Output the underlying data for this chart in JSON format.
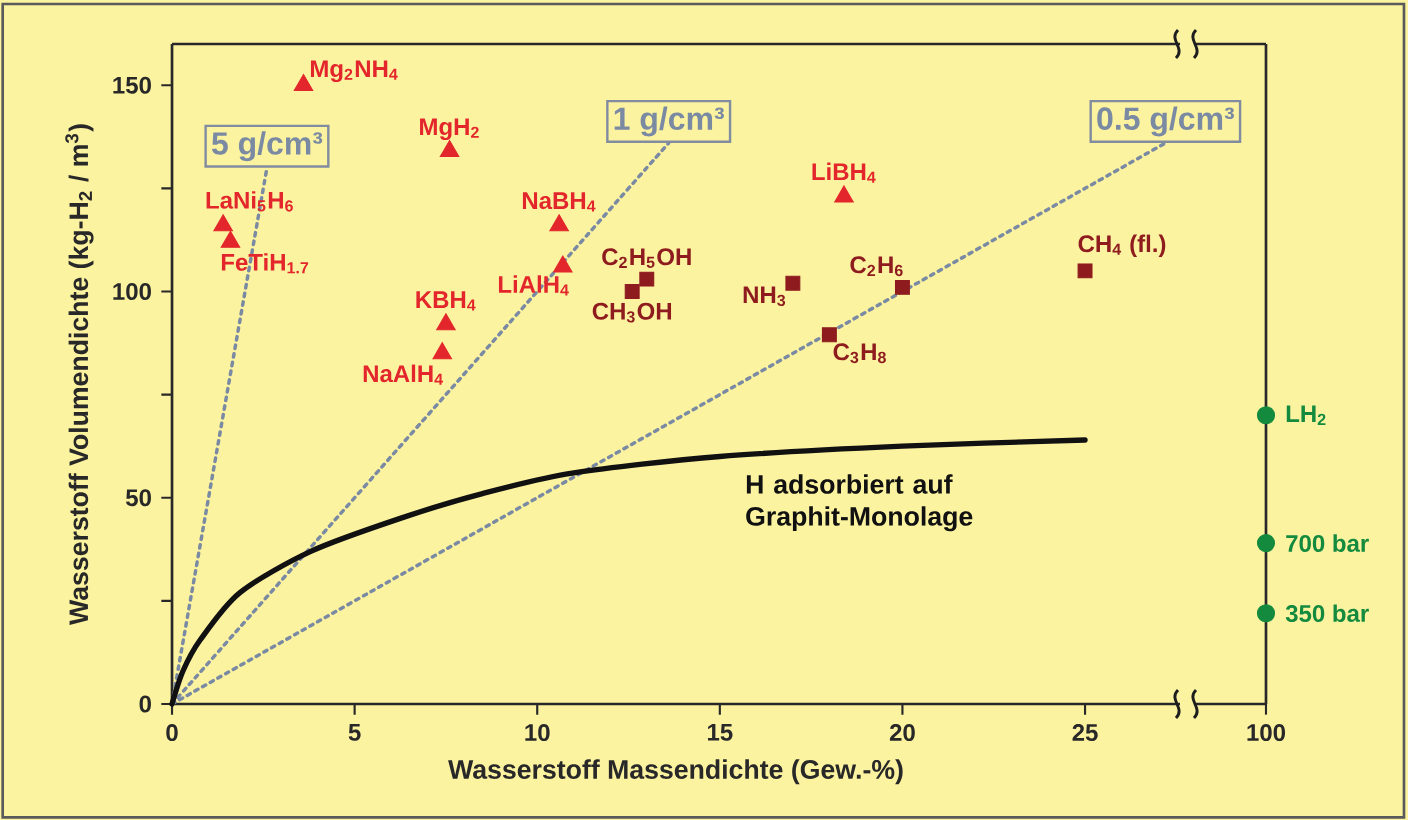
{
  "chart_data": [
    {
      "type": "scatter",
      "xlabel": "Wasserstoff Massendichte (Gew.-%)",
      "ylabel": "Wasserstoff Volumendichte (kg-H$_{2}$ / m$^{3}$)",
      "xlim": [
        0,
        27.6
      ],
      "ylim": [
        0,
        160
      ],
      "xticks": [
        0,
        5,
        10,
        15,
        20,
        25
      ],
      "yticks": [
        0,
        {
          "value": 25,
          "label": null
        },
        50,
        {
          "value": 75,
          "label": null
        },
        100,
        {
          "value": 125,
          "label": null
        },
        150
      ],
      "series": [
        {
          "name": "5 g/cm³",
          "type": "line",
          "color": "#7b8aa3",
          "line_style": "dotted",
          "marker": "none",
          "x": [
            0,
            2.6
          ],
          "values": [
            0,
            130
          ]
        },
        {
          "name": "1 g/cm³",
          "type": "line",
          "color": "#7b8aa3",
          "line_style": "dotted",
          "marker": "none",
          "x": [
            0,
            13.6
          ],
          "values": [
            0,
            136
          ]
        },
        {
          "name": "0.5 g/cm³",
          "type": "line",
          "color": "#7b8aa3",
          "line_style": "dotted",
          "marker": "none",
          "x": [
            0,
            27.2
          ],
          "values": [
            0,
            136
          ]
        },
        {
          "name": "H adsorbiert auf Graphit-Monolage",
          "type": "line",
          "color": "#111111",
          "line_style": "solid",
          "marker": "none",
          "x": [
            0,
            0.3,
            0.77,
            1.86,
            3.8,
            6.25,
            8.5,
            11,
            15,
            20,
            25
          ],
          "values": [
            0,
            8,
            15.5,
            27,
            37,
            45,
            51,
            56,
            60,
            62.5,
            64
          ]
        },
        {
          "name": "Mg$_{2}$NH$_{4}$",
          "color": "#e3262b",
          "marker": "triangle",
          "x": [
            3.6
          ],
          "values": [
            150
          ]
        },
        {
          "name": "MgH$_{2}$",
          "color": "#e3262b",
          "marker": "triangle",
          "x": [
            7.6
          ],
          "values": [
            134
          ]
        },
        {
          "name": "LaNi$_{5}$H$_{6}$",
          "color": "#e3262b",
          "marker": "triangle",
          "x": [
            1.4
          ],
          "values": [
            116
          ]
        },
        {
          "name": "FeTiH$_{1.7}$",
          "color": "#e3262b",
          "marker": "triangle",
          "x": [
            1.6
          ],
          "values": [
            112
          ]
        },
        {
          "name": "NaBH$_{4}$",
          "color": "#e3262b",
          "marker": "triangle",
          "x": [
            10.6
          ],
          "values": [
            116
          ]
        },
        {
          "name": "LiAlH$_{4}$",
          "color": "#e3262b",
          "marker": "triangle",
          "x": [
            10.7
          ],
          "values": [
            106
          ]
        },
        {
          "name": "KBH$_{4}$",
          "color": "#e3262b",
          "marker": "triangle",
          "x": [
            7.5
          ],
          "values": [
            92
          ]
        },
        {
          "name": "NaAlH$_{4}$",
          "color": "#e3262b",
          "marker": "triangle",
          "x": [
            7.4
          ],
          "values": [
            85
          ]
        },
        {
          "name": "LiBH$_{4}$",
          "color": "#e3262b",
          "marker": "triangle",
          "x": [
            18.4
          ],
          "values": [
            123
          ]
        },
        {
          "name": "CH$_{3}$OH",
          "color": "#8e1c1f",
          "marker": "square",
          "x": [
            12.6
          ],
          "values": [
            100
          ]
        },
        {
          "name": "C$_{2}$H$_{5}$OH",
          "color": "#8e1c1f",
          "marker": "square",
          "x": [
            13.0
          ],
          "values": [
            103
          ]
        },
        {
          "name": "NH$_{3}$",
          "color": "#8e1c1f",
          "marker": "square",
          "x": [
            17.0
          ],
          "values": [
            102
          ]
        },
        {
          "name": "C$_{2}$H$_{6}$",
          "color": "#8e1c1f",
          "marker": "square",
          "x": [
            20.0
          ],
          "values": [
            101
          ]
        },
        {
          "name": "C$_{3}$H$_{8}$",
          "color": "#8e1c1f",
          "marker": "square",
          "x": [
            18.0
          ],
          "values": [
            89.5
          ]
        },
        {
          "name": "CH$_{4}$ (fl.)",
          "color": "#8e1c1f",
          "marker": "square",
          "x": [
            25.0
          ],
          "values": [
            105
          ]
        }
      ]
    },
    {
      "type": "scatter",
      "categories": [
        "100"
      ],
      "ylim": [
        0,
        160
      ],
      "tick_labels": "x",
      "series": [
        {
          "name": "LH$_{2}$",
          "color": "#138a3e",
          "marker": "circle",
          "values": [
            70
          ]
        },
        {
          "name": "700 bar",
          "color": "#138a3e",
          "marker": "circle",
          "values": [
            39
          ]
        },
        {
          "name": "350 bar",
          "color": "#138a3e",
          "marker": "circle",
          "values": [
            22
          ]
        }
      ]
    }
  ]
}
